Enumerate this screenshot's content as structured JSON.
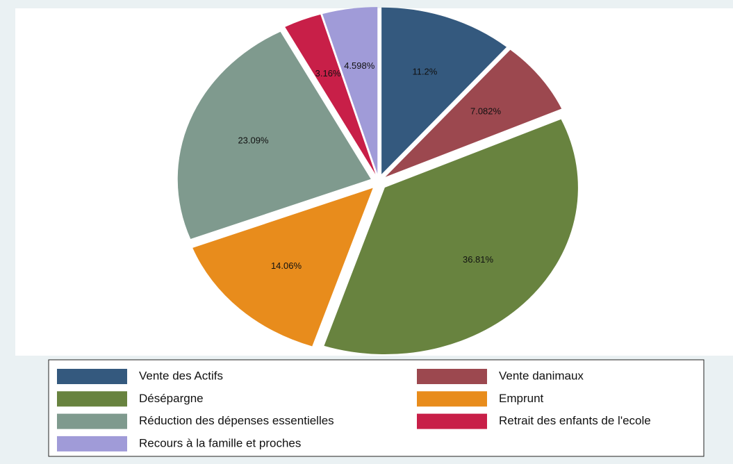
{
  "chart_data": {
    "type": "pie",
    "categories": [
      "Vente des Actifs",
      "Vente danimaux",
      "Désépargne",
      "Emprunt",
      "Réduction des dépenses essentielles",
      "Retrait des enfants de l'ecole",
      "Recours à la famille et proches"
    ],
    "values": [
      11.2,
      7.082,
      36.81,
      14.06,
      23.09,
      3.16,
      4.598
    ],
    "value_labels": [
      "11.2%",
      "7.082%",
      "36.81%",
      "14.06%",
      "23.09%",
      "3.16%",
      "4.598%"
    ],
    "colors": [
      "#34597e",
      "#9c484f",
      "#68833f",
      "#e88c1c",
      "#7f9a8e",
      "#c81f48",
      "#a09bd8"
    ],
    "legend": "bottom"
  }
}
